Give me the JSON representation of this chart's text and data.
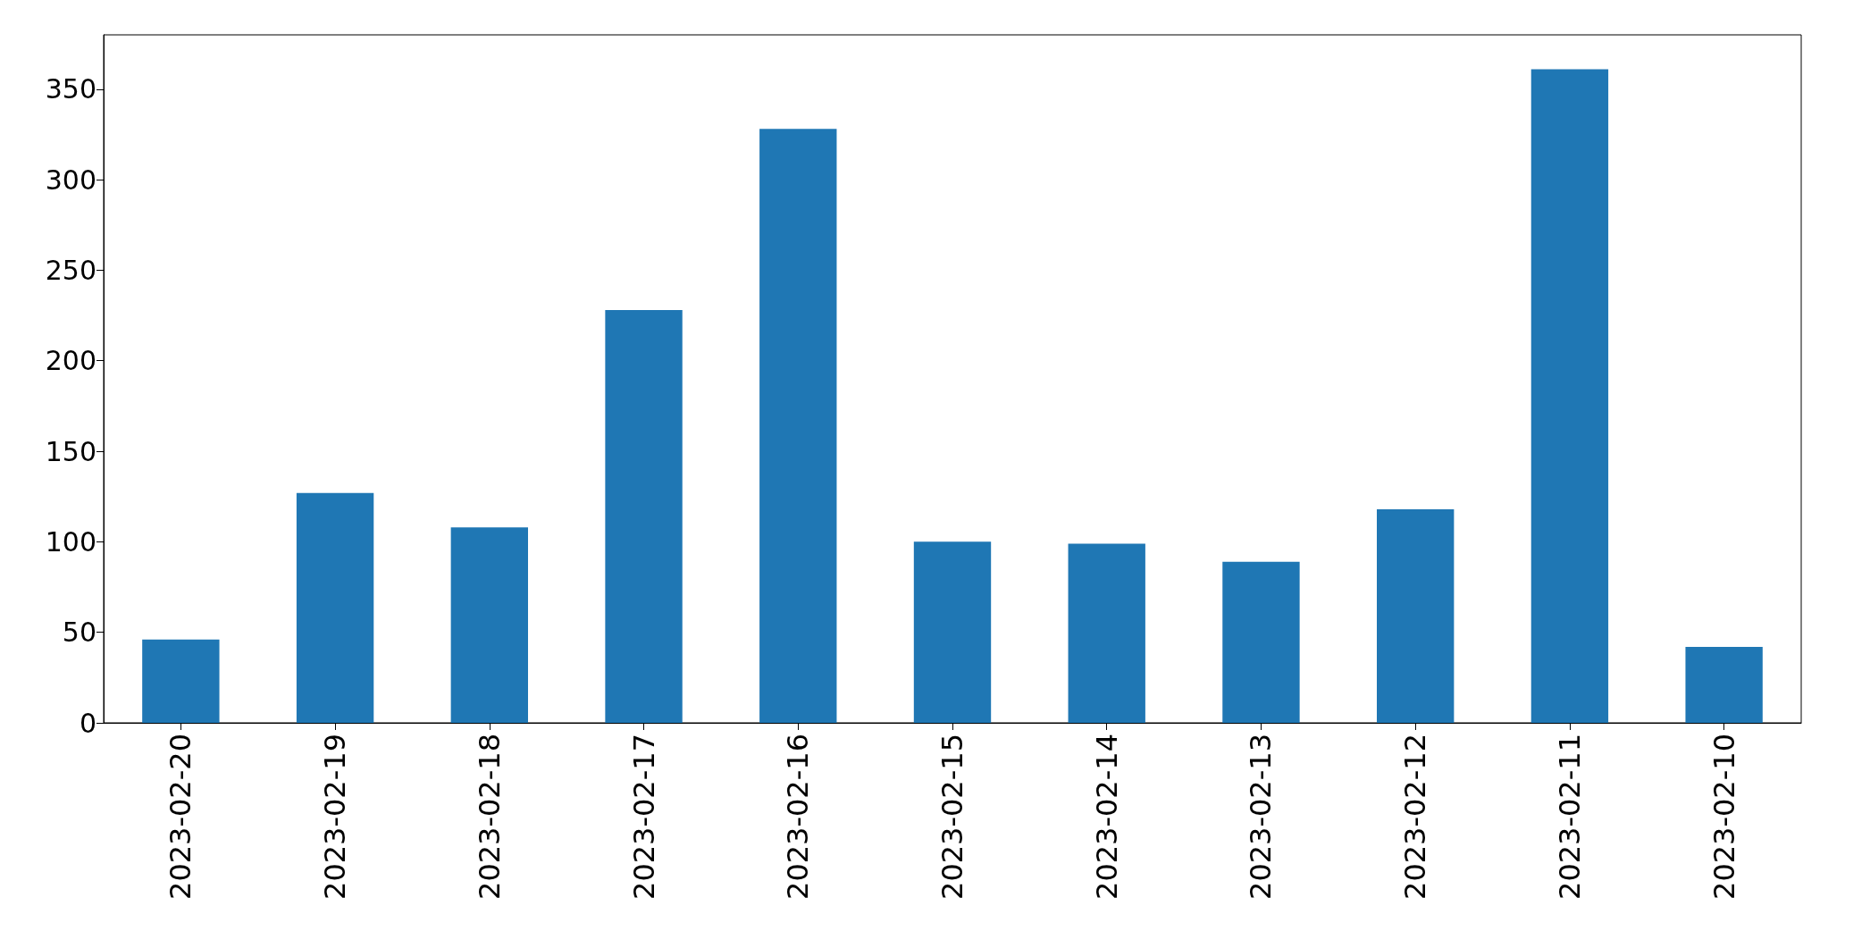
{
  "chart_data": {
    "type": "bar",
    "categories": [
      "2023-02-20",
      "2023-02-19",
      "2023-02-18",
      "2023-02-17",
      "2023-02-16",
      "2023-02-15",
      "2023-02-14",
      "2023-02-13",
      "2023-02-12",
      "2023-02-11",
      "2023-02-10"
    ],
    "values": [
      46,
      127,
      108,
      228,
      328,
      100,
      99,
      89,
      118,
      361,
      42
    ],
    "color": "#1f77b4",
    "ylim": [
      0,
      380
    ],
    "yticks": [
      0,
      50,
      100,
      150,
      200,
      250,
      300,
      350
    ],
    "grid": false
  }
}
